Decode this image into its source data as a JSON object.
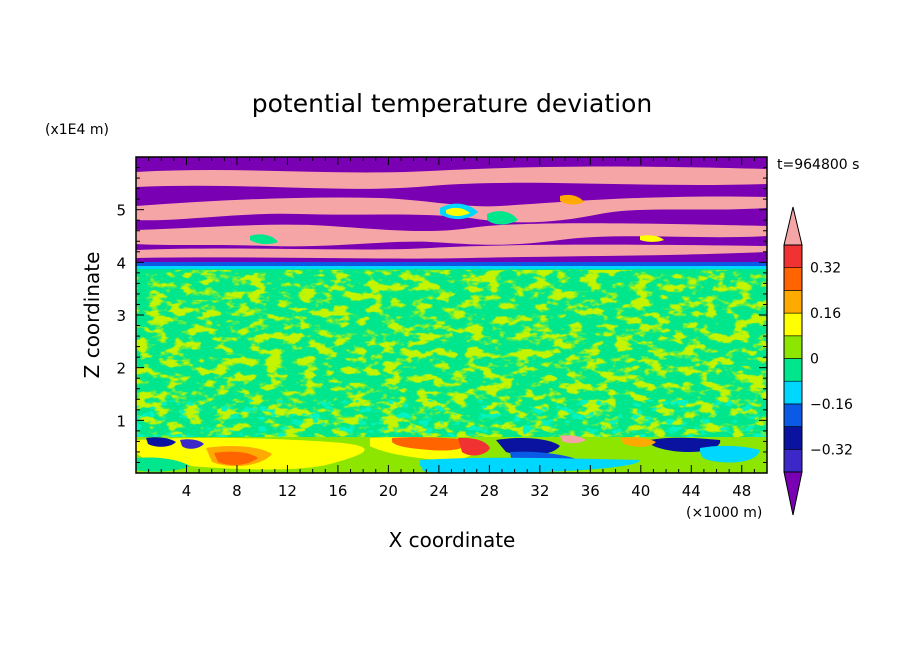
{
  "chart_data": {
    "type": "heatmap",
    "title": "potential temperature deviation",
    "time_label": "t=964800 s",
    "xlabel": "X coordinate",
    "ylabel": "Z coordinate",
    "x_unit": "(×1000 m)",
    "y_unit": "(x1E4 m)",
    "x_range": [
      0,
      50
    ],
    "y_range": [
      0,
      6
    ],
    "x_ticks": [
      "4",
      "8",
      "12",
      "16",
      "20",
      "24",
      "28",
      "32",
      "36",
      "40",
      "44",
      "48"
    ],
    "y_ticks": [
      "1",
      "2",
      "3",
      "4",
      "5"
    ],
    "grid": false,
    "colorbar": {
      "labels": [
        "0.32",
        "0.16",
        "0",
        "−0.16",
        "−0.32"
      ],
      "label_values": [
        0.32,
        0.16,
        0,
        -0.16,
        -0.32
      ],
      "levels": [
        -0.4,
        -0.32,
        -0.24,
        -0.16,
        -0.08,
        0,
        0.08,
        0.16,
        0.24,
        0.32,
        0.4
      ],
      "colors": [
        "#7a00b4",
        "#3c28c8",
        "#0a12a0",
        "#0a5ae6",
        "#00d7ff",
        "#00e68c",
        "#8ce600",
        "#ffff00",
        "#ffaa00",
        "#ff6400",
        "#f03232",
        "#f5a5a5"
      ],
      "extend": "both"
    },
    "regions": [
      {
        "z_range": [
          0,
          0.7
        ],
        "pattern": "mixed strong positive and negative anomalies (red/orange/yellow and blue/cyan)"
      },
      {
        "z_range": [
          0.7,
          3.8
        ],
        "pattern": "near zero, alternating green shades (-0.08 to 0.08)"
      },
      {
        "z_range": [
          3.8,
          4.0
        ],
        "pattern": "thin blue/cyan band"
      },
      {
        "z_range": [
          4.0,
          6.0
        ],
        "pattern": "alternating purple (below -0.4) and pink (above 0.4) layers"
      }
    ]
  }
}
